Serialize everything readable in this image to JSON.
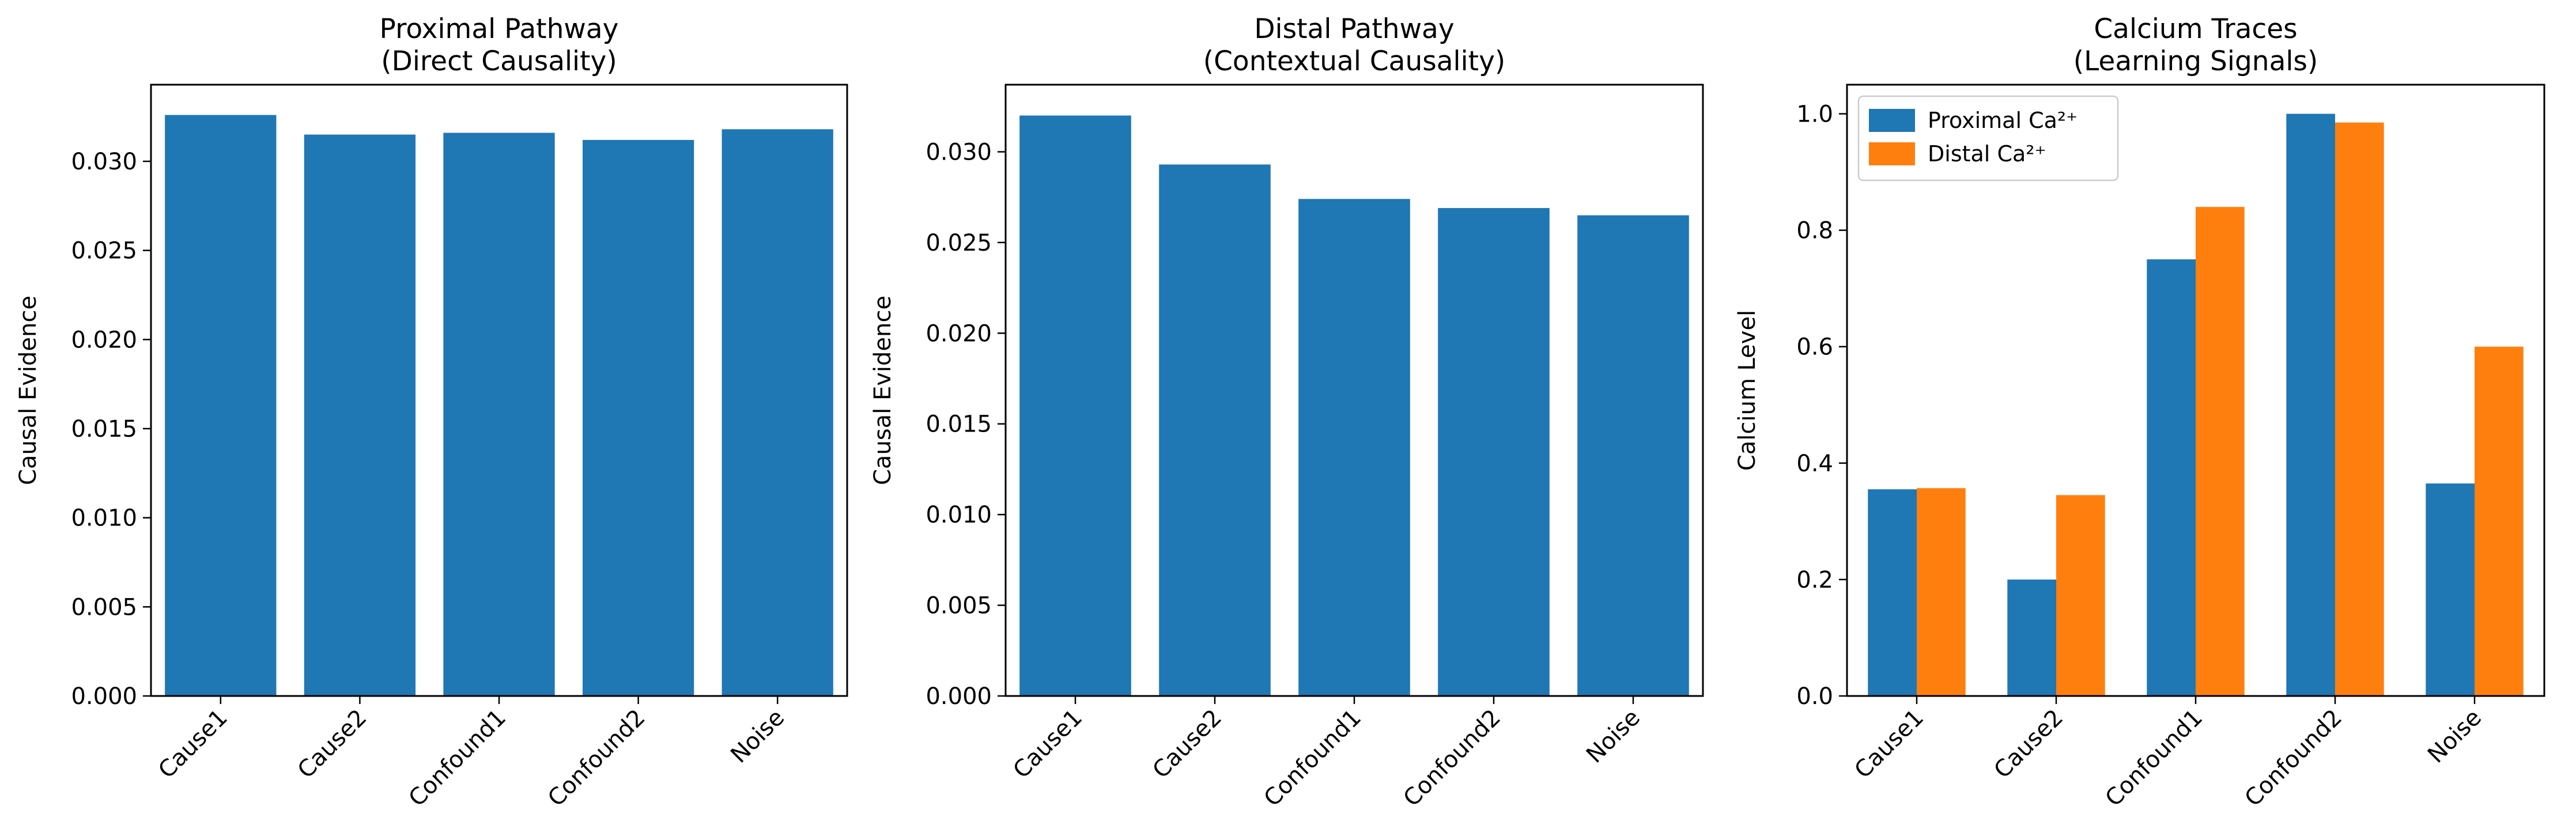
{
  "chart_data": [
    {
      "type": "bar",
      "title": "Proximal Pathway\n(Direct Causality)",
      "xlabel": "",
      "ylabel": "Causal Evidence",
      "categories": [
        "Cause1",
        "Cause2",
        "Confound1",
        "Confound2",
        "Noise"
      ],
      "values": [
        0.0326,
        0.0315,
        0.0316,
        0.0312,
        0.0318
      ],
      "ylim": [
        0,
        0.0343
      ],
      "yticks": [
        0.0,
        0.005,
        0.01,
        0.015,
        0.02,
        0.025,
        0.03
      ],
      "ytick_labels": [
        "0.000",
        "0.005",
        "0.010",
        "0.015",
        "0.020",
        "0.025",
        "0.030"
      ],
      "color": "#1f77b4",
      "grid": false
    },
    {
      "type": "bar",
      "title": "Distal Pathway\n(Contextual Causality)",
      "xlabel": "",
      "ylabel": "Causal Evidence",
      "categories": [
        "Cause1",
        "Cause2",
        "Confound1",
        "Confound2",
        "Noise"
      ],
      "values": [
        0.032,
        0.0293,
        0.0274,
        0.0269,
        0.0265
      ],
      "ylim": [
        0,
        0.0337
      ],
      "yticks": [
        0.0,
        0.005,
        0.01,
        0.015,
        0.02,
        0.025,
        0.03
      ],
      "ytick_labels": [
        "0.000",
        "0.005",
        "0.010",
        "0.015",
        "0.020",
        "0.025",
        "0.030"
      ],
      "color": "#1f77b4",
      "grid": false
    },
    {
      "type": "bar",
      "title": "Calcium Traces\n(Learning Signals)",
      "xlabel": "",
      "ylabel": "Calcium Level",
      "categories": [
        "Cause1",
        "Cause2",
        "Confound1",
        "Confound2",
        "Noise"
      ],
      "series": [
        {
          "name": "Proximal Ca²⁺",
          "values": [
            0.355,
            0.2,
            0.75,
            1.0,
            0.365
          ],
          "color": "#1f77b4"
        },
        {
          "name": "Distal Ca²⁺",
          "values": [
            0.357,
            0.345,
            0.84,
            0.985,
            0.6
          ],
          "color": "#ff7f0e"
        }
      ],
      "ylim": [
        0,
        1.05
      ],
      "yticks": [
        0.0,
        0.2,
        0.4,
        0.6,
        0.8,
        1.0
      ],
      "ytick_labels": [
        "0.0",
        "0.2",
        "0.4",
        "0.6",
        "0.8",
        "1.0"
      ],
      "legend": "top-left",
      "grid": false
    }
  ]
}
